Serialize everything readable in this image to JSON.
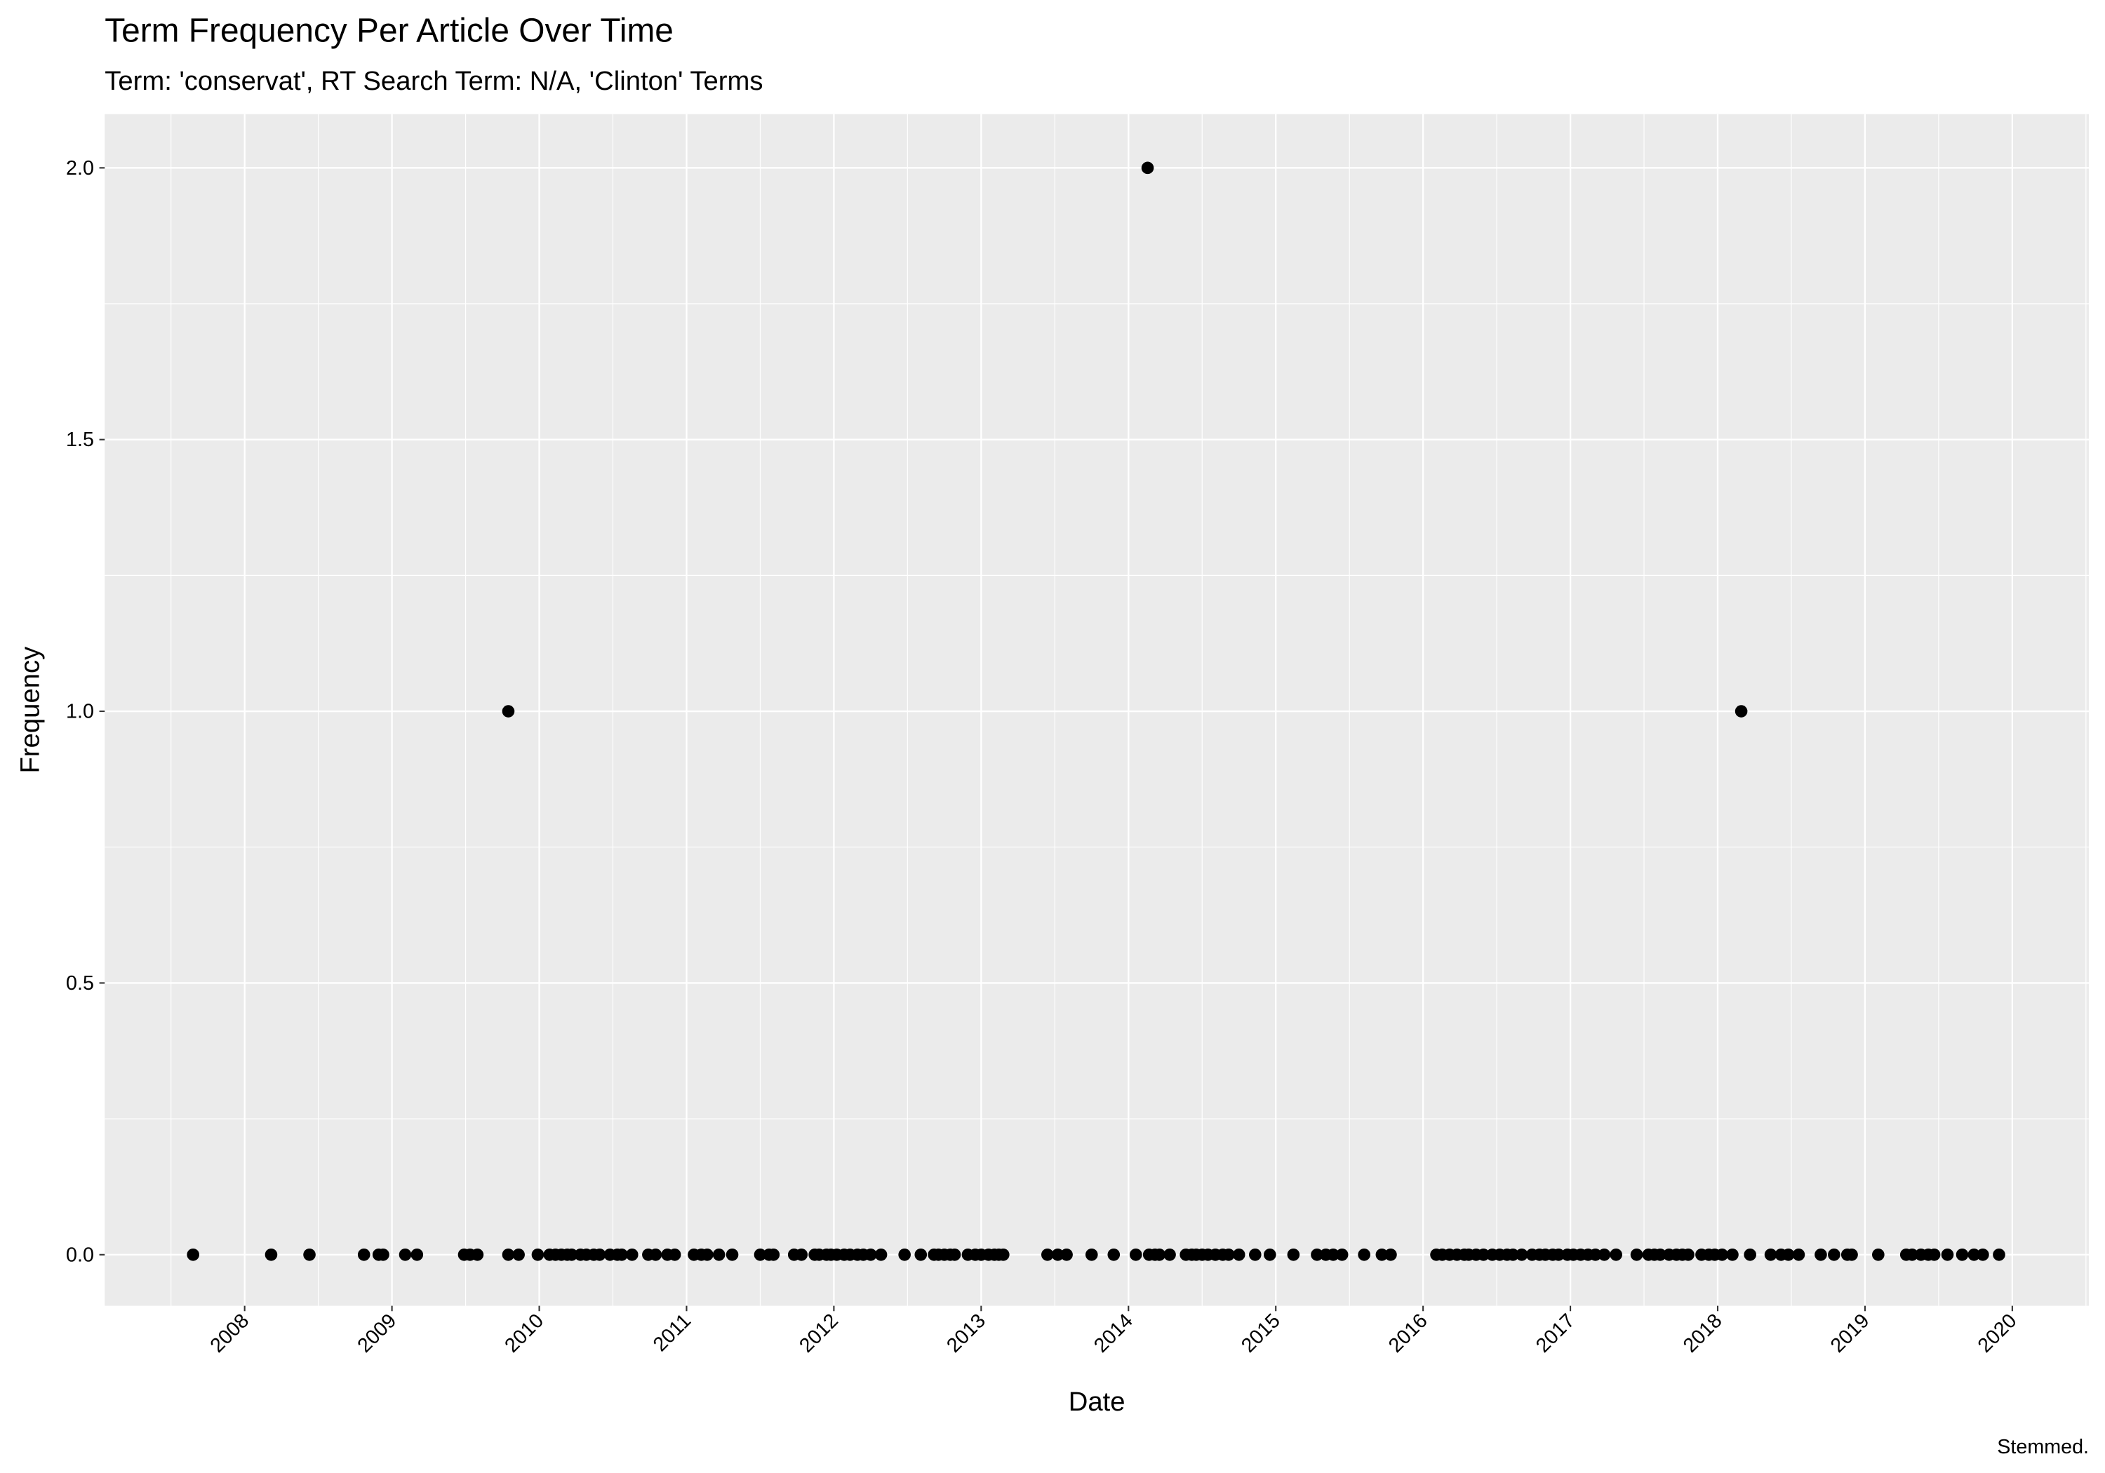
{
  "chart_data": {
    "type": "scatter",
    "title": "Term Frequency Per Article Over Time",
    "subtitle": "Term: 'conservat', RT Search Term: N/A, 'Clinton' Terms",
    "x_label": "Date",
    "y_label": "Frequency",
    "caption": "Stemmed.",
    "color": "#000000",
    "grid": true,
    "xlim": [
      2007.05,
      2020.52
    ],
    "ylim": [
      -0.094,
      2.099
    ],
    "xticks": [
      2008,
      2009,
      2010,
      2011,
      2012,
      2013,
      2014,
      2015,
      2016,
      2017,
      2018,
      2019,
      2020
    ],
    "yticks": [
      {
        "value": 0,
        "label": "0.0"
      },
      0.5,
      {
        "value": 1,
        "label": "1.0"
      },
      1.5,
      {
        "value": 2,
        "label": "2.0"
      }
    ],
    "x": [
      2007.65,
      2008.18,
      2008.44,
      2008.81,
      2008.91,
      2008.94,
      2009.09,
      2009.17,
      2009.49,
      2009.53,
      2009.58,
      2009.79,
      2009.79,
      2009.86,
      2009.99,
      2010.07,
      2010.11,
      2010.15,
      2010.19,
      2010.22,
      2010.28,
      2010.32,
      2010.37,
      2010.41,
      2010.48,
      2010.53,
      2010.56,
      2010.63,
      2010.74,
      2010.79,
      2010.87,
      2010.92,
      2011.05,
      2011.1,
      2011.14,
      2011.22,
      2011.31,
      2011.5,
      2011.56,
      2011.59,
      2011.73,
      2011.78,
      2011.87,
      2011.9,
      2011.95,
      2011.98,
      2012.02,
      2012.07,
      2012.11,
      2012.16,
      2012.2,
      2012.25,
      2012.32,
      2012.48,
      2012.59,
      2012.68,
      2012.71,
      2012.75,
      2012.79,
      2012.82,
      2012.91,
      2012.96,
      2013.0,
      2013.05,
      2013.09,
      2013.12,
      2013.15,
      2013.45,
      2013.52,
      2013.58,
      2013.75,
      2013.9,
      2014.05,
      2014.13,
      2014.14,
      2014.18,
      2014.21,
      2014.28,
      2014.39,
      2014.43,
      2014.46,
      2014.5,
      2014.54,
      2014.59,
      2014.64,
      2014.68,
      2014.75,
      2014.86,
      2014.96,
      2015.12,
      2015.28,
      2015.34,
      2015.39,
      2015.45,
      2015.6,
      2015.72,
      2015.78,
      2016.09,
      2016.13,
      2016.18,
      2016.23,
      2016.28,
      2016.31,
      2016.36,
      2016.41,
      2016.47,
      2016.52,
      2016.57,
      2016.61,
      2016.67,
      2016.74,
      2016.79,
      2016.83,
      2016.88,
      2016.92,
      2016.98,
      2017.02,
      2017.07,
      2017.12,
      2017.17,
      2017.23,
      2017.31,
      2017.45,
      2017.53,
      2017.57,
      2017.61,
      2017.67,
      2017.72,
      2017.76,
      2017.8,
      2017.89,
      2017.94,
      2017.98,
      2018.03,
      2018.1,
      2018.16,
      2018.22,
      2018.36,
      2018.43,
      2018.48,
      2018.55,
      2018.7,
      2018.79,
      2018.88,
      2018.91,
      2019.09,
      2019.28,
      2019.32,
      2019.38,
      2019.43,
      2019.47,
      2019.56,
      2019.66,
      2019.74,
      2019.8,
      2019.91
    ],
    "values": [
      0,
      0,
      0,
      0,
      0,
      0,
      0,
      0,
      0,
      0,
      0,
      1,
      0,
      0,
      0,
      0,
      0,
      0,
      0,
      0,
      0,
      0,
      0,
      0,
      0,
      0,
      0,
      0,
      0,
      0,
      0,
      0,
      0,
      0,
      0,
      0,
      0,
      0,
      0,
      0,
      0,
      0,
      0,
      0,
      0,
      0,
      0,
      0,
      0,
      0,
      0,
      0,
      0,
      0,
      0,
      0,
      0,
      0,
      0,
      0,
      0,
      0,
      0,
      0,
      0,
      0,
      0,
      0,
      0,
      0,
      0,
      0,
      0,
      2,
      0,
      0,
      0,
      0,
      0,
      0,
      0,
      0,
      0,
      0,
      0,
      0,
      0,
      0,
      0,
      0,
      0,
      0,
      0,
      0,
      0,
      0,
      0,
      0,
      0,
      0,
      0,
      0,
      0,
      0,
      0,
      0,
      0,
      0,
      0,
      0,
      0,
      0,
      0,
      0,
      0,
      0,
      0,
      0,
      0,
      0,
      0,
      0,
      0,
      0,
      0,
      0,
      0,
      0,
      0,
      0,
      0,
      0,
      0,
      0,
      0,
      1,
      0,
      0,
      0,
      0,
      0,
      0,
      0,
      0,
      0,
      0,
      0,
      0,
      0,
      0,
      0,
      0,
      0,
      0,
      0,
      0
    ]
  }
}
